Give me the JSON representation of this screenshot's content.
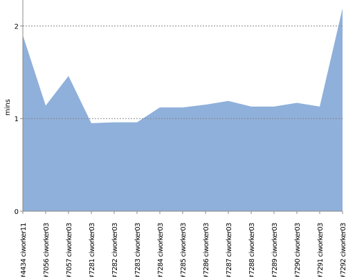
{
  "chart_data": {
    "type": "area",
    "y_label": "mins",
    "categories": [
      "#4434 ciworker11",
      "#7056 ciworker03",
      "#7057 ciworker03",
      "#7281 ciworker03",
      "#7282 ciworker03",
      "#7283 ciworker03",
      "#7284 ciworker03",
      "#7285 ciworker03",
      "#7286 ciworker03",
      "#7287 ciworker03",
      "#7288 ciworker03",
      "#7289 ciworker03",
      "#7290 ciworker03",
      "#7291 ciworker03",
      "#7292 ciworker03"
    ],
    "values": [
      1.9,
      1.14,
      1.46,
      0.95,
      0.96,
      0.96,
      1.12,
      1.12,
      1.15,
      1.19,
      1.13,
      1.13,
      1.17,
      1.13,
      2.19
    ],
    "color": "#8fb0da",
    "ylim": [
      0,
      2.28
    ],
    "yticks": [
      0,
      1,
      2
    ],
    "grid": true
  }
}
